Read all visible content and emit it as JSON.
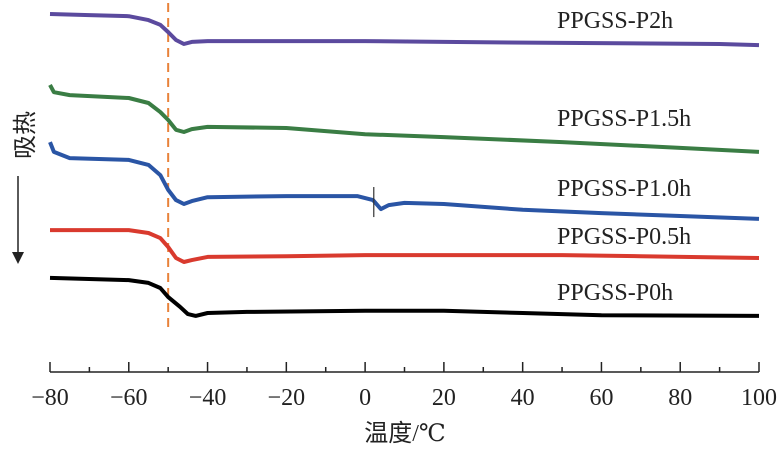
{
  "chart_data": {
    "type": "line",
    "title": "",
    "xlabel": "温度/℃",
    "ylabel": "吸热",
    "ylabel_arrow": "down",
    "xlim": [
      -80,
      100
    ],
    "ylim": [
      0,
      100
    ],
    "y_units": "arbitrary (heat flow, a.u.)",
    "xticks": [
      -80,
      -60,
      -40,
      -20,
      0,
      20,
      40,
      60,
      80,
      100
    ],
    "xtick_labels": [
      "−80",
      "−60",
      "−40",
      "−20",
      "0",
      "20",
      "40",
      "60",
      "80",
      "100"
    ],
    "minor_xticks": [
      -70,
      -50,
      -30,
      -10,
      10,
      30,
      50,
      70,
      90
    ],
    "grid": false,
    "reference_line": {
      "x": -50,
      "style": "dashed",
      "color": "#e8823a"
    },
    "series": [
      {
        "name": "PPGSS-P2h",
        "color": "#5b4a9e",
        "x": [
          -80,
          -70,
          -60,
          -55,
          -52,
          -50,
          -48,
          -46,
          -44,
          -40,
          0,
          20,
          50,
          90,
          100
        ],
        "y": [
          98.9,
          98.6,
          98.3,
          97.2,
          95.9,
          93.9,
          91.7,
          90.6,
          91.2,
          91.4,
          91.4,
          91.2,
          90.9,
          90.6,
          90.3
        ]
      },
      {
        "name": "PPGSS-P1.5h",
        "color": "#3a7d44",
        "x": [
          -80,
          -79,
          -75,
          -60,
          -55,
          -52,
          -50,
          -48,
          -46,
          -44,
          -40,
          -20,
          0,
          20,
          50,
          80,
          100
        ],
        "y": [
          79.3,
          77.3,
          76.5,
          75.7,
          74.3,
          71.8,
          69.6,
          66.9,
          66.3,
          67.1,
          67.7,
          67.4,
          65.7,
          64.9,
          63.5,
          61.9,
          60.8
        ]
      },
      {
        "name": "PPGSS-P1.0h",
        "color": "#2a55a5",
        "x": [
          -80,
          -79,
          -75,
          -60,
          -55,
          -52,
          -50,
          -48,
          -46,
          -44,
          -40,
          -20,
          -2,
          2,
          4,
          6,
          10,
          20,
          40,
          60,
          80,
          100
        ],
        "y": [
          63.5,
          60.8,
          59.1,
          58.6,
          57.2,
          54.4,
          50.3,
          47.5,
          46.4,
          47.2,
          48.3,
          48.6,
          48.6,
          47.5,
          45.0,
          46.1,
          46.7,
          46.4,
          44.8,
          43.9,
          43.1,
          42.3
        ],
        "marker": {
          "x": 2.2,
          "y_range": [
            42.8,
            51.1
          ]
        }
      },
      {
        "name": "PPGSS-P0.5h",
        "color": "#d93a2e",
        "x": [
          -80,
          -60,
          -55,
          -52,
          -50,
          -48,
          -46,
          -44,
          -40,
          -20,
          0,
          50,
          70,
          100
        ],
        "y": [
          39.2,
          39.2,
          38.4,
          37.0,
          34.5,
          31.5,
          30.4,
          30.9,
          31.8,
          32.0,
          32.3,
          32.3,
          32.0,
          31.5
        ]
      },
      {
        "name": "PPGSS-P0h",
        "color": "#000000",
        "x": [
          -80,
          -60,
          -55,
          -52,
          -50,
          -47,
          -45,
          -43,
          -40,
          -30,
          0,
          20,
          40,
          60,
          100
        ],
        "y": [
          26.0,
          25.4,
          24.6,
          23.2,
          20.7,
          18.0,
          16.0,
          15.5,
          16.3,
          16.6,
          16.9,
          16.9,
          16.3,
          15.7,
          15.5
        ]
      }
    ]
  }
}
